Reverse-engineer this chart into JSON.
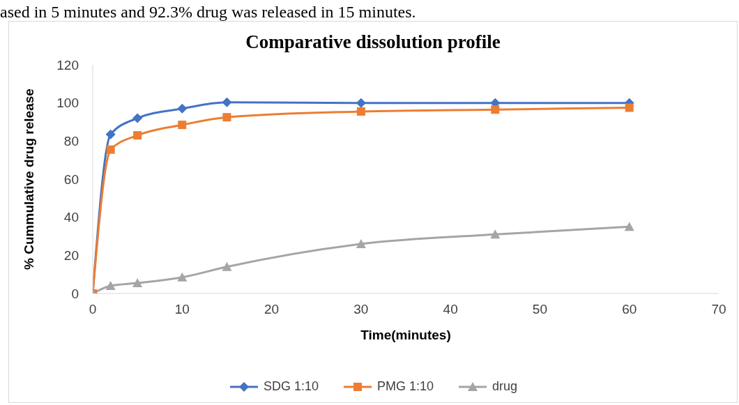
{
  "chart_data": {
    "type": "line",
    "title": "Comparative dissolution profile",
    "xlabel": "Time(minutes)",
    "ylabel": "% Cummulative drug release",
    "annotations": [
      "ased in 5 minutes and 92.3% drug was released in 15 minutes."
    ],
    "x": [
      0,
      2,
      5,
      10,
      15,
      30,
      45,
      60
    ],
    "series": [
      {
        "name": "SDG 1:10",
        "color": "#4472c4",
        "marker": "diamond",
        "values": [
          0,
          83.5,
          92,
          97,
          100.3,
          100,
          100,
          100
        ]
      },
      {
        "name": "PMG 1:10",
        "color": "#ed7d31",
        "marker": "square",
        "values": [
          0,
          75.5,
          83,
          88.5,
          92.5,
          95.5,
          96.5,
          97.5
        ]
      },
      {
        "name": "drug",
        "color": "#a5a5a5",
        "marker": "triangle",
        "values": [
          0,
          4,
          5.5,
          8.5,
          14,
          26,
          31,
          35
        ]
      }
    ],
    "xlim": [
      0,
      70
    ],
    "xticks": [
      0,
      10,
      20,
      30,
      40,
      50,
      60,
      70
    ],
    "ylim": [
      0,
      120
    ],
    "yticks": [
      0,
      20,
      40,
      60,
      80,
      100,
      120
    ],
    "grid": false,
    "legend": "bottom",
    "line_style": "solid"
  }
}
